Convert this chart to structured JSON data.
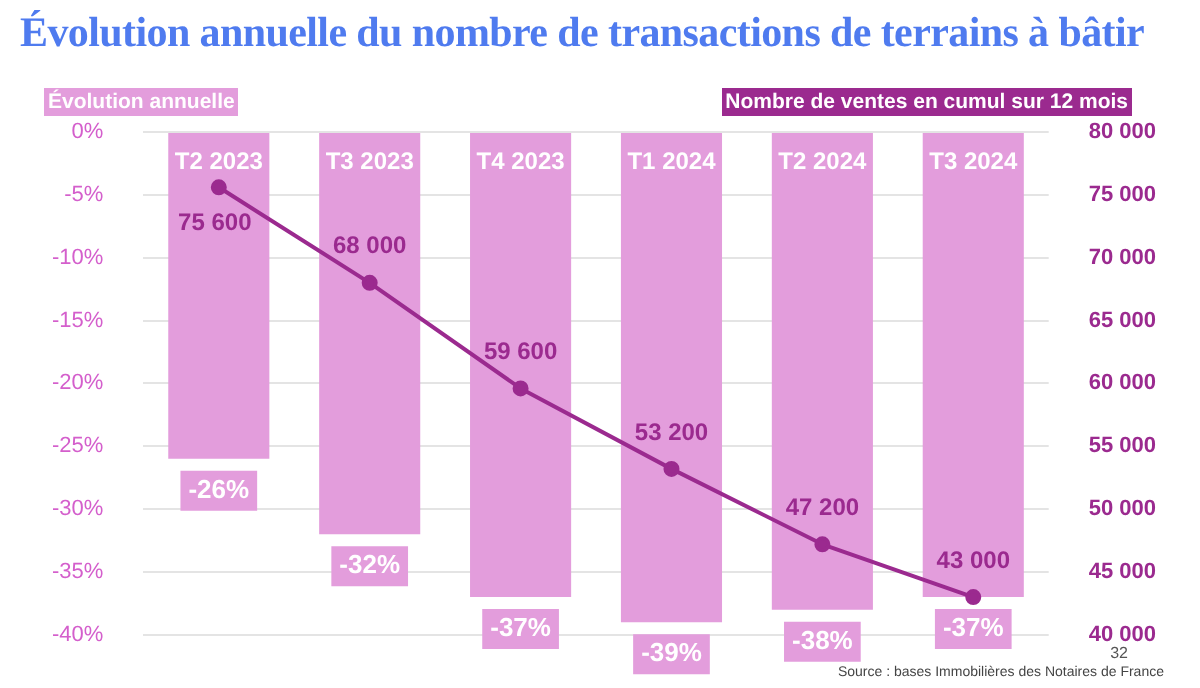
{
  "chart_data": {
    "type": "bar",
    "title": "Évolution annuelle du nombre de transactions de terrains à bâtir",
    "ylabel": "Évolution annuelle",
    "y2label": "Nombre de ventes en cumul sur 12 mois",
    "categories": [
      "T2 2023",
      "T3 2023",
      "T4 2023",
      "T1 2024",
      "T2 2024",
      "T3 2024"
    ],
    "series": [
      {
        "color": "#e39ddc",
        "values": [
          -26,
          -32,
          -37,
          -39,
          -38,
          -37
        ],
        "value_labels": [
          "-26%",
          "-32%",
          "-37%",
          "-39%",
          "-38%",
          "-37%"
        ]
      },
      {
        "type": "line",
        "axis": "y2",
        "color": "#9b2a8f",
        "values": [
          75600,
          68000,
          59600,
          53200,
          47200,
          43000
        ]
      }
    ],
    "ylim": [
      -40,
      0
    ],
    "yticks": [
      {
        "value": 0,
        "label": "0%"
      },
      {
        "value": -5,
        "label": "-5%"
      },
      {
        "value": -10,
        "label": "-10%"
      },
      {
        "value": -15,
        "label": "-15%"
      },
      {
        "value": -20,
        "label": "-20%"
      },
      {
        "value": -25,
        "label": "-25%"
      },
      {
        "value": -30,
        "label": "-30%"
      },
      {
        "value": -35,
        "label": "-35%"
      },
      {
        "value": -40,
        "label": "-40%"
      }
    ],
    "y2lim": [
      40000,
      80000
    ],
    "y2ticks": [
      {
        "value": 40000,
        "label": "40 000"
      },
      {
        "value": 45000,
        "label": "45 000"
      },
      {
        "value": 50000,
        "label": "50 000"
      },
      {
        "value": 55000,
        "label": "55 000"
      },
      {
        "value": 60000,
        "label": "60 000"
      },
      {
        "value": 65000,
        "label": "65 000"
      },
      {
        "value": 70000,
        "label": "70 000"
      },
      {
        "value": 75000,
        "label": "75 000"
      },
      {
        "value": 80000,
        "label": "80 000"
      }
    ],
    "data_labels": true,
    "grid": "y",
    "legend": false,
    "marker": "circle",
    "line_style": "solid",
    "annotations": [
      "Source : bases Immobilières des Notaires de France",
      "32"
    ]
  }
}
